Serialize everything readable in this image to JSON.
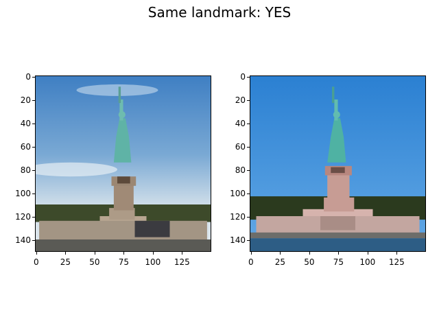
{
  "figure": {
    "title": "Same landmark: YES"
  },
  "axes": [
    {
      "id": "left",
      "xticks": [
        "0",
        "25",
        "50",
        "75",
        "100",
        "125"
      ],
      "yticks": [
        "0",
        "20",
        "40",
        "60",
        "80",
        "100",
        "120",
        "140"
      ],
      "image": "statue-of-liberty-photo-1",
      "colors": {
        "sky_top": "#3d7fc2",
        "sky_bottom": "#c9dbe8",
        "statue": "#5fb3a6",
        "pedestal": "#a8957f",
        "base": "#9c9080",
        "trees": "#3d4a2a"
      }
    },
    {
      "id": "right",
      "xticks": [
        "0",
        "25",
        "50",
        "75",
        "100",
        "125"
      ],
      "yticks": [
        "0",
        "20",
        "40",
        "60",
        "80",
        "100",
        "120",
        "140"
      ],
      "image": "statue-of-liberty-photo-2",
      "colors": {
        "sky_top": "#2f85d6",
        "sky_bottom": "#57a3e6",
        "statue": "#4fb2a3",
        "pedestal": "#c79c94",
        "base": "#c3a6a0",
        "trees": "#2b3a1e",
        "water": "#2d5d85"
      }
    }
  ]
}
